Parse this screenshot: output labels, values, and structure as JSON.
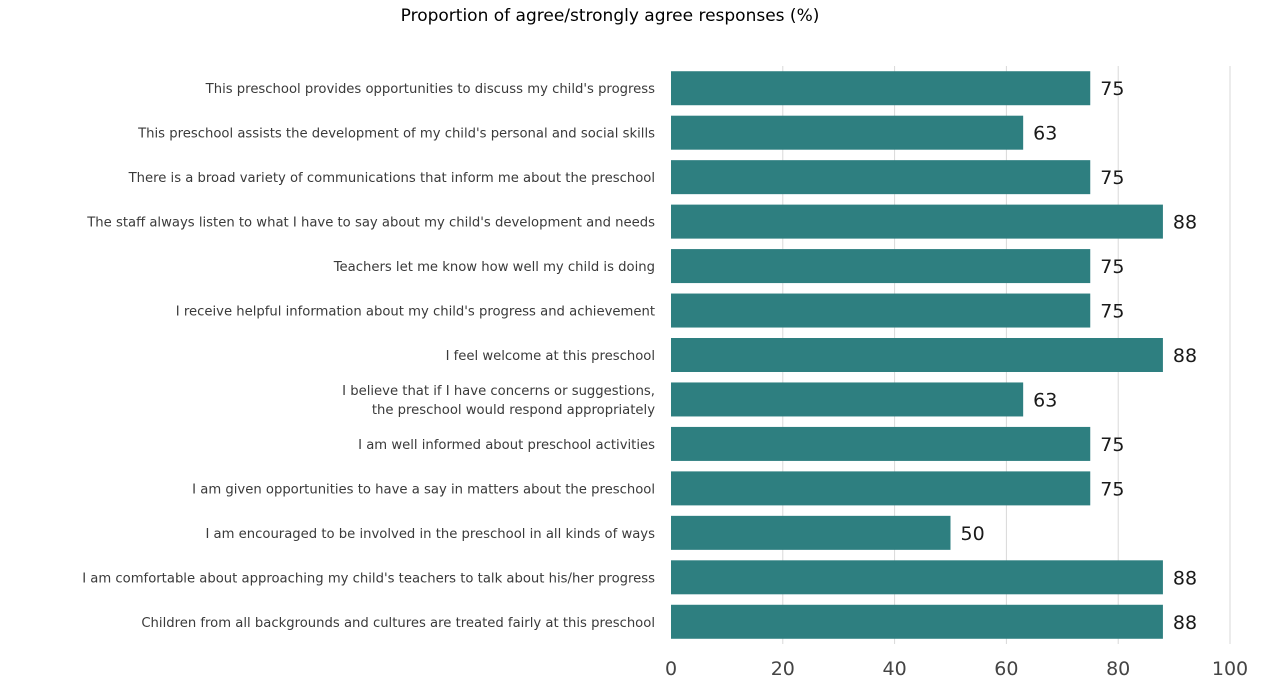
{
  "chart_data": {
    "type": "bar",
    "orientation": "horizontal",
    "title": "Proportion of agree/strongly agree responses (%)",
    "categories": [
      [
        "This preschool provides opportunities to discuss my child's progress"
      ],
      [
        "This preschool assists the development of my child's personal and social skills"
      ],
      [
        "There is a broad variety of communications that inform me about the preschool"
      ],
      [
        "The staff always listen to what I have to say about my child's development and needs"
      ],
      [
        "Teachers let me know how well my child is doing"
      ],
      [
        "I receive helpful information about my child's progress and achievement"
      ],
      [
        "I feel welcome at this preschool"
      ],
      [
        "I believe that if I have concerns or suggestions,",
        "the preschool would respond appropriately"
      ],
      [
        "I am well informed about preschool activities"
      ],
      [
        "I am given opportunities to have a say in matters about the preschool"
      ],
      [
        "I am encouraged to be involved in the preschool in all kinds of ways"
      ],
      [
        "I am comfortable about approaching my child's teachers to talk about his/her progress"
      ],
      [
        "Children from all backgrounds and cultures are treated fairly at this preschool"
      ]
    ],
    "values": [
      75,
      63,
      75,
      88,
      75,
      75,
      88,
      63,
      75,
      75,
      50,
      88,
      88
    ],
    "xlim": [
      0,
      100
    ],
    "xticks": [
      0,
      20,
      40,
      60,
      80,
      100
    ],
    "bar_color": "#2e7f80",
    "grid": true,
    "data_labels": true
  }
}
